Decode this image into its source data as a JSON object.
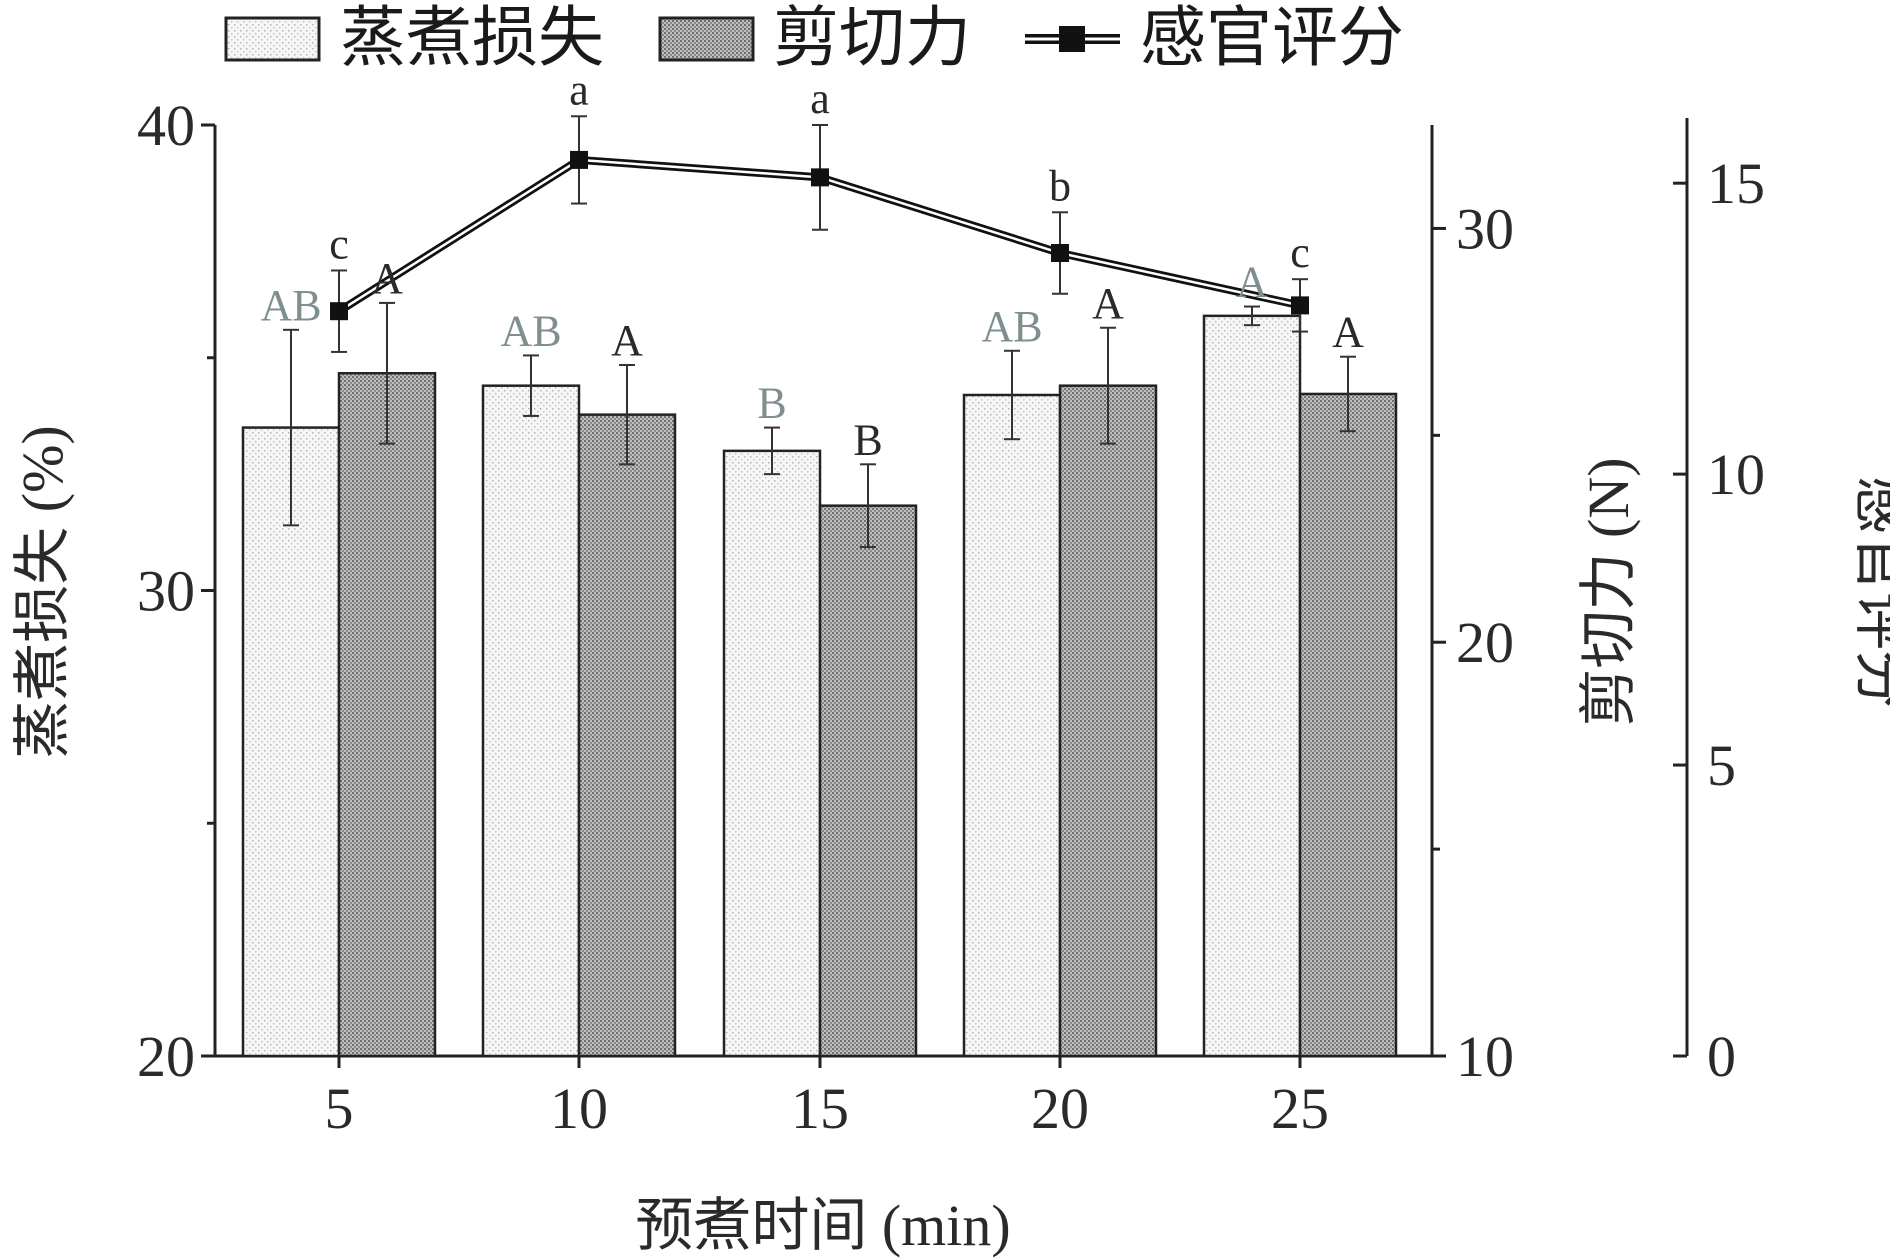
{
  "chart_data": {
    "type": "bar",
    "categories": [
      "5",
      "10",
      "15",
      "20",
      "25"
    ],
    "xlabel": "预煮时间 (min)",
    "legend": {
      "placement": "top",
      "entries": [
        "蒸煮损失",
        "剪切力",
        "感官评分"
      ]
    },
    "axes": {
      "left": {
        "label": "蒸煮损失 (%)",
        "ylim": [
          20,
          40
        ],
        "ticks": [
          "20",
          "30",
          "40"
        ]
      },
      "right1": {
        "label": "剪切力 (N)",
        "ylim": [
          10,
          32.5
        ],
        "ticks": [
          "10",
          "20",
          "30"
        ]
      },
      "right2": {
        "label": "感官评分",
        "ylim": [
          0,
          16
        ],
        "ticks": [
          "0",
          "5",
          "10",
          "15"
        ]
      }
    },
    "series": [
      {
        "name": "蒸煮损失",
        "kind": "bar",
        "axis": "left",
        "values": [
          33.5,
          34.4,
          33.0,
          34.2,
          35.9
        ],
        "errors": [
          2.1,
          0.65,
          0.5,
          0.95,
          0.2
        ],
        "sig": [
          "AB",
          "AB",
          "B",
          "AB",
          "A"
        ]
      },
      {
        "name": "剪切力",
        "kind": "bar",
        "axis": "right1",
        "values": [
          26.5,
          25.5,
          23.3,
          26.2,
          26.0
        ],
        "errors": [
          1.7,
          1.2,
          1.0,
          1.4,
          0.9
        ],
        "sig": [
          "A",
          "A",
          "B",
          "A",
          "A"
        ]
      },
      {
        "name": "感官评分",
        "kind": "line",
        "axis": "right2",
        "values": [
          12.8,
          15.4,
          15.1,
          13.8,
          12.9
        ],
        "errors": [
          0.7,
          0.75,
          0.9,
          0.7,
          0.45
        ],
        "sig": [
          "c",
          "a",
          "a",
          "b",
          "c"
        ]
      }
    ]
  },
  "colors": {
    "axis": "#222222",
    "bar_light": "#f2f2f2",
    "bar_dark": "#9a9a9a",
    "line": "#111111",
    "sig_gray": "#7f8f8f",
    "sig_dark": "#2a2a2a"
  }
}
